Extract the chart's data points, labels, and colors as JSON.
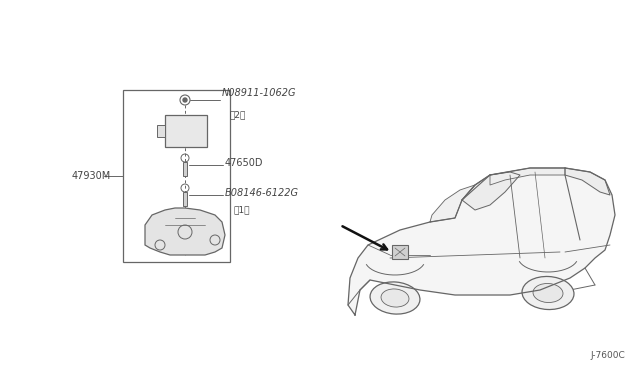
{
  "bg_color": "#ffffff",
  "line_color": "#666666",
  "text_color": "#444444",
  "page_code": "J-7600C",
  "labels": {
    "part1": "N08911-1062G",
    "part1_qty": "（2）",
    "part2": "47650D",
    "part3": "B08146-6122G",
    "part3_qty": "（1）",
    "part4": "47930M"
  }
}
